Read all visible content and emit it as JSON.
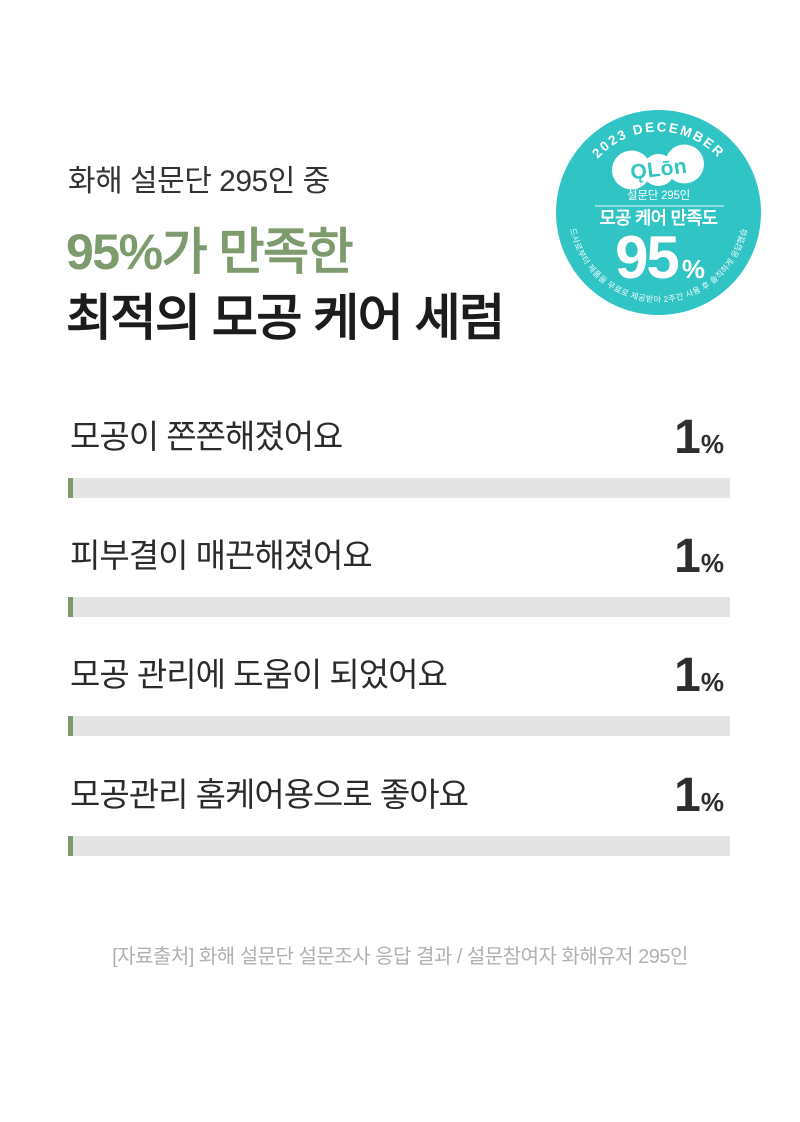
{
  "colors": {
    "accent_green": "#7d9b6d",
    "badge_teal": "#30c4c4",
    "bar_track_gray": "#e4e4e4",
    "text_dark": "#2b2b2b",
    "footer_gray": "#b2b0b0"
  },
  "header": {
    "subtitle": "화해 설문단 295인 중",
    "title_highlight": "95%가 만족한",
    "title_main": "최적의 모공 케어 세럼"
  },
  "badge": {
    "top_text": "2023 DECEMBER",
    "logo_text": "ǪLōn",
    "panel_text": "설문단 295인",
    "metric_label": "모공 케어 만족도",
    "metric_value": "95",
    "metric_unit": "%",
    "disclaimer": "브랜드사로부터 제품을 무료로 제공받아 2주간 사용 후 솔직하게 응답했습니다"
  },
  "survey": {
    "rows": [
      {
        "label": "모공이 쫀쫀해졌어요",
        "value": "1",
        "unit": "%",
        "fill_percent": 0.8
      },
      {
        "label": "피부결이 매끈해졌어요",
        "value": "1",
        "unit": "%",
        "fill_percent": 0.8
      },
      {
        "label": "모공 관리에 도움이 되었어요",
        "value": "1",
        "unit": "%",
        "fill_percent": 0.8
      },
      {
        "label": "모공관리 홈케어용으로 좋아요",
        "value": "1",
        "unit": "%",
        "fill_percent": 0.8
      }
    ]
  },
  "footer": {
    "source": "[자료출처] 화해 설문단 설문조사 응답 결과 / 설문참여자 화해유저 295인"
  },
  "chart_data": {
    "type": "bar",
    "orientation": "horizontal",
    "title": "화해 설문단 295인 중 95%가 만족한 최적의 모공 케어 세럼",
    "categories": [
      "모공이 쫀쫀해졌어요",
      "피부결이 매끈해졌어요",
      "모공 관리에 도움이 되었어요",
      "모공관리 홈케어용으로 좋아요"
    ],
    "values": [
      1,
      1,
      1,
      1
    ],
    "unit": "%",
    "xlim": [
      0,
      100
    ],
    "legend": false,
    "grid": false,
    "badge_metric": {
      "period": "2023 DECEMBER",
      "panel": "설문단 295인",
      "label": "모공 케어 만족도",
      "value": 95,
      "unit": "%"
    }
  }
}
